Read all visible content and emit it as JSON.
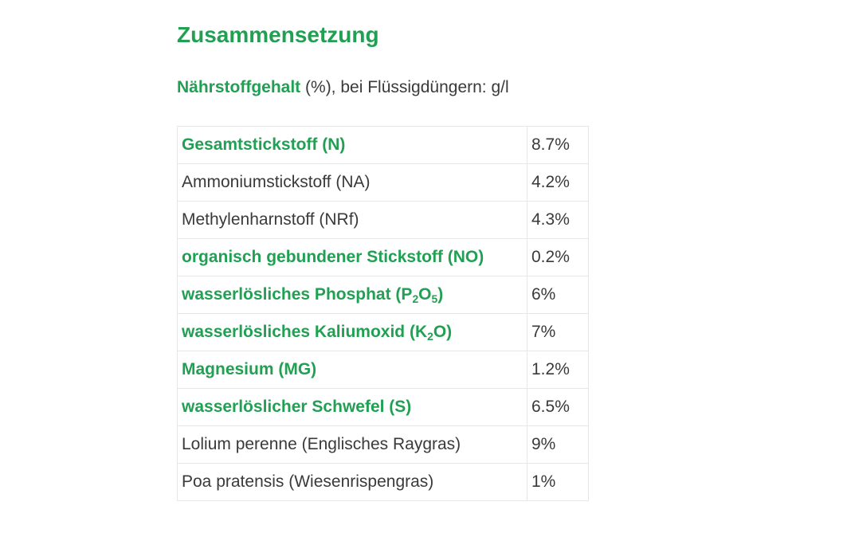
{
  "heading": "Zusammensetzung",
  "subtitle": {
    "bold": "Nährstoffgehalt",
    "rest": " (%), bei Flüssigdüngern: g/l"
  },
  "table": {
    "rows": [
      {
        "label": "Gesamtstickstoff (N)",
        "value": "8.7%",
        "bold": true
      },
      {
        "label": "Ammoniumstickstoff (NA)",
        "value": "4.2%",
        "bold": false
      },
      {
        "label": "Methylenharnstoff (NRf)",
        "value": "4.3%",
        "bold": false
      },
      {
        "label": "organisch gebundener Stickstoff (NO)",
        "value": "0.2%",
        "bold": true
      },
      {
        "label_prefix": "wasserlösliches Phosphat (P",
        "sub1": "2",
        "label_mid": "O",
        "sub2": "5",
        "label_suffix": ")",
        "value": "6%",
        "bold": true
      },
      {
        "label_prefix": "wasserlösliches Kaliumoxid (K",
        "sub1": "2",
        "label_suffix": "O)",
        "value": "7%",
        "bold": true
      },
      {
        "label": "Magnesium (MG)",
        "value": "1.2%",
        "bold": true
      },
      {
        "label": "wasserlöslicher Schwefel (S)",
        "value": "6.5%",
        "bold": true
      },
      {
        "label": "Lolium perenne (Englisches Raygras)",
        "value": "9%",
        "bold": false
      },
      {
        "label": "Poa pratensis (Wiesenrispengras)",
        "value": "1%",
        "bold": false
      }
    ]
  }
}
